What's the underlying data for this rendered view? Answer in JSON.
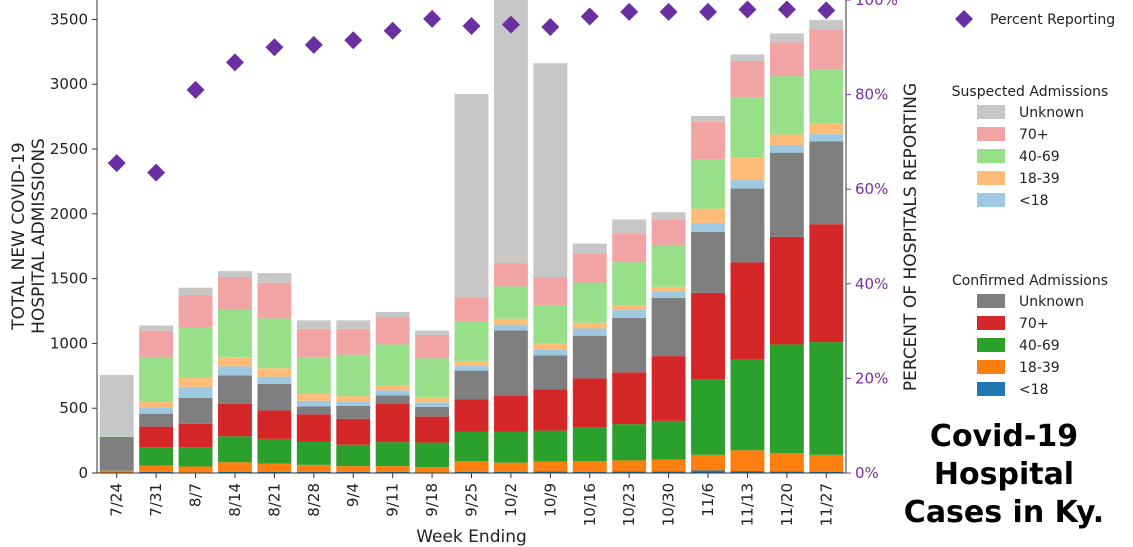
{
  "chart_data": {
    "type": "bar",
    "stacked": true,
    "xlabel": "Week Ending",
    "ylabel": "TOTAL NEW COVID-19\nHOSPITAL ADMISSIONS",
    "y2label": "PERCENT OF HOSPITALS REPORTING",
    "ylim": [
      0,
      3650
    ],
    "y2lim": [
      0,
      100
    ],
    "yticks": [
      0,
      500,
      1000,
      1500,
      2000,
      2500,
      3000,
      3500
    ],
    "y2ticks": [
      "0%",
      "20%",
      "40%",
      "60%",
      "80%",
      "100%"
    ],
    "categories": [
      "7/24",
      "7/31",
      "8/7",
      "8/14",
      "8/21",
      "8/28",
      "9/4",
      "9/11",
      "9/18",
      "9/25",
      "10/2",
      "10/9",
      "10/16",
      "10/23",
      "10/30",
      "11/6",
      "11/13",
      "11/20",
      "11/27"
    ],
    "series": [
      {
        "group": "Confirmed Admissions",
        "name": "<18",
        "color": "#1f77b4",
        "values": [
          3,
          8,
          5,
          8,
          8,
          8,
          8,
          8,
          5,
          10,
          10,
          12,
          10,
          12,
          12,
          20,
          15,
          12,
          10
        ]
      },
      {
        "group": "Confirmed Admissions",
        "name": "18-39",
        "color": "#ff7f0e",
        "values": [
          10,
          50,
          45,
          75,
          65,
          55,
          45,
          45,
          40,
          80,
          70,
          75,
          80,
          85,
          90,
          120,
          160,
          140,
          130
        ]
      },
      {
        "group": "Confirmed Admissions",
        "name": "40-69",
        "color": "#2ca02c",
        "values": [
          5,
          140,
          150,
          200,
          190,
          180,
          165,
          185,
          190,
          230,
          240,
          240,
          260,
          280,
          300,
          580,
          700,
          840,
          870
        ]
      },
      {
        "group": "Confirmed Admissions",
        "name": "70+",
        "color": "#d62728",
        "values": [
          3,
          160,
          180,
          250,
          220,
          210,
          200,
          300,
          200,
          250,
          280,
          320,
          380,
          400,
          500,
          670,
          750,
          830,
          910
        ]
      },
      {
        "group": "Confirmed Admissions",
        "name": "Unknown",
        "color": "#7f7f7f",
        "values": [
          258,
          100,
          200,
          220,
          205,
          60,
          100,
          60,
          75,
          220,
          500,
          260,
          330,
          420,
          450,
          470,
          570,
          650,
          640
        ]
      },
      {
        "group": "Suspected Admissions",
        "name": "<18",
        "color": "#9ecae1",
        "values": [
          2,
          50,
          85,
          70,
          55,
          45,
          30,
          40,
          35,
          35,
          45,
          45,
          55,
          60,
          45,
          70,
          65,
          60,
          55
        ]
      },
      {
        "group": "Suspected Admissions",
        "name": "18-39",
        "color": "#ffbb78",
        "values": [
          2,
          40,
          70,
          70,
          65,
          55,
          45,
          35,
          40,
          40,
          45,
          45,
          45,
          40,
          40,
          110,
          175,
          80,
          80
        ]
      },
      {
        "group": "Suspected Admissions",
        "name": "40-69",
        "color": "#98df8a",
        "values": [
          3,
          340,
          385,
          365,
          385,
          280,
          320,
          320,
          300,
          300,
          250,
          300,
          310,
          330,
          315,
          380,
          460,
          450,
          420
        ]
      },
      {
        "group": "Suspected Admissions",
        "name": "70+",
        "color": "#f2a3a3",
        "values": [
          3,
          210,
          255,
          255,
          275,
          220,
          200,
          210,
          180,
          190,
          180,
          215,
          220,
          220,
          205,
          290,
          285,
          260,
          310
        ]
      },
      {
        "group": "Suspected Admissions",
        "name": "Unknown",
        "color": "#c7c7c7",
        "values": [
          468,
          40,
          55,
          45,
          75,
          65,
          65,
          40,
          35,
          1570,
          2150,
          1650,
          80,
          110,
          55,
          45,
          50,
          70,
          70
        ]
      }
    ],
    "percent_reporting": {
      "name": "Percent Reporting",
      "color": "#6a2fa0",
      "values": [
        65.5,
        63.5,
        81,
        86.8,
        90,
        90.5,
        91.5,
        93.5,
        96,
        94.5,
        94.8,
        94.3,
        96.5,
        97.5,
        97.5,
        97.5,
        98,
        98,
        97.8
      ]
    }
  },
  "legend": {
    "percent_label": "Percent Reporting",
    "suspected_title": "Suspected Admissions",
    "confirmed_title": "Confirmed Admissions",
    "suspected_items": [
      {
        "label": "Unknown",
        "color": "#c7c7c7"
      },
      {
        "label": "70+",
        "color": "#f2a3a3"
      },
      {
        "label": "40-69",
        "color": "#98df8a"
      },
      {
        "label": "18-39",
        "color": "#ffbb78"
      },
      {
        "label": "<18",
        "color": "#9ecae1"
      }
    ],
    "confirmed_items": [
      {
        "label": "Unknown",
        "color": "#7f7f7f"
      },
      {
        "label": "70+",
        "color": "#d62728"
      },
      {
        "label": "40-69",
        "color": "#2ca02c"
      },
      {
        "label": "18-39",
        "color": "#ff7f0e"
      },
      {
        "label": "<18",
        "color": "#1f77b4"
      }
    ]
  },
  "caption": "Covid-19\nHospital\nCases in Ky."
}
